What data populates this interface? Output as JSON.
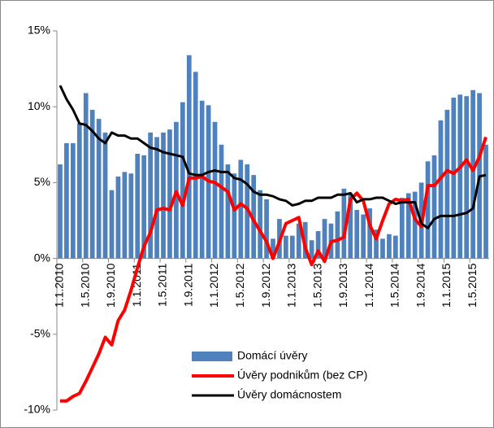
{
  "chart_data": {
    "type": "bar-line",
    "categories": [
      "1.1.2010",
      null,
      null,
      null,
      "1.5.2010",
      null,
      null,
      null,
      "1.9.2010",
      null,
      null,
      null,
      "1.1.2011",
      null,
      null,
      null,
      "1.5.2011",
      null,
      null,
      null,
      "1.9.2011",
      null,
      null,
      null,
      "1.1.2012",
      null,
      null,
      null,
      "1.5.2012",
      null,
      null,
      null,
      "1.9.2012",
      null,
      null,
      null,
      "1.1.2013",
      null,
      null,
      null,
      "1.5.2013",
      null,
      null,
      null,
      "1.9.2013",
      null,
      null,
      null,
      "1.1.2014",
      null,
      null,
      null,
      "1.5.2014",
      null,
      null,
      null,
      "1.9.2014",
      null,
      null,
      null,
      "1.1.2015",
      null,
      null,
      null,
      "1.5.2015",
      null,
      null
    ],
    "series": [
      {
        "name": "Domácí úvěry",
        "kind": "bar",
        "color": "#4f81bd",
        "values": [
          6.2,
          7.6,
          7.6,
          8.9,
          10.9,
          9.8,
          9.2,
          8.3,
          4.5,
          5.4,
          5.7,
          5.6,
          6.9,
          6.8,
          8.3,
          8.0,
          8.3,
          8.5,
          9.0,
          10.3,
          13.4,
          12.3,
          10.4,
          10.1,
          9.0,
          7.5,
          6.2,
          5.6,
          6.5,
          6.2,
          5.5,
          4.5,
          3.9,
          1.3,
          2.6,
          1.5,
          1.5,
          2.3,
          2.4,
          1.2,
          1.8,
          2.6,
          2.3,
          3.1,
          4.6,
          4.3,
          3.2,
          2.9,
          3.3,
          1.9,
          1.3,
          1.6,
          1.5,
          4.0,
          4.3,
          4.4,
          5.0,
          6.4,
          6.8,
          9.1,
          9.8,
          10.6,
          10.8,
          10.7,
          11.1,
          10.9,
          7.5
        ]
      },
      {
        "name": "Úvěry podnikům (bez CP)",
        "kind": "line",
        "color": "#ff0000",
        "values": [
          -9.4,
          -9.4,
          -9.1,
          -8.9,
          -8.1,
          -7.2,
          -6.3,
          -5.2,
          -5.7,
          -4.1,
          -3.4,
          -2.1,
          -0.6,
          0.8,
          1.7,
          3.2,
          3.3,
          3.2,
          4.4,
          3.5,
          5.3,
          5.3,
          5.4,
          5.1,
          5.0,
          4.7,
          4.4,
          3.2,
          3.6,
          3.3,
          2.5,
          1.8,
          1.1,
          0.0,
          1.1,
          2.3,
          2.5,
          2.7,
          0.7,
          -0.4,
          0.5,
          -0.2,
          1.1,
          1.2,
          1.4,
          3.9,
          4.3,
          3.8,
          2.2,
          1.3,
          2.5,
          3.6,
          3.9,
          3.8,
          3.9,
          2.6,
          2.1,
          4.8,
          4.8,
          5.3,
          5.8,
          5.6,
          6.0,
          6.5,
          5.8,
          6.7,
          8.0
        ]
      },
      {
        "name": "Úvěry domácnostem",
        "kind": "line",
        "color": "#000000",
        "values": [
          11.4,
          10.5,
          9.8,
          8.9,
          8.8,
          8.4,
          7.9,
          7.6,
          8.3,
          8.1,
          8.1,
          7.9,
          7.9,
          7.6,
          7.3,
          7.2,
          7.0,
          6.9,
          6.8,
          6.7,
          5.6,
          5.5,
          5.5,
          5.7,
          5.8,
          5.7,
          5.7,
          5.3,
          5.2,
          4.9,
          4.4,
          4.2,
          4.2,
          4.1,
          3.9,
          3.8,
          3.5,
          3.6,
          3.8,
          3.8,
          4.0,
          4.0,
          4.0,
          4.2,
          4.2,
          4.3,
          3.7,
          3.9,
          3.9,
          4.0,
          4.0,
          3.8,
          3.6,
          3.7,
          3.7,
          3.7,
          2.3,
          2.0,
          2.6,
          2.8,
          2.8,
          2.8,
          2.9,
          3.0,
          3.3,
          5.4,
          5.5
        ]
      }
    ],
    "ylim": [
      -10,
      15
    ],
    "yticks": [
      {
        "value": -10,
        "label": "-10%"
      },
      {
        "value": -5,
        "label": "-5%"
      },
      {
        "value": 0,
        "label": "0%"
      },
      {
        "value": 5,
        "label": "5%"
      },
      {
        "value": 10,
        "label": "10%"
      },
      {
        "value": 15,
        "label": "15%"
      }
    ],
    "grid": false,
    "legend": "lower center"
  }
}
